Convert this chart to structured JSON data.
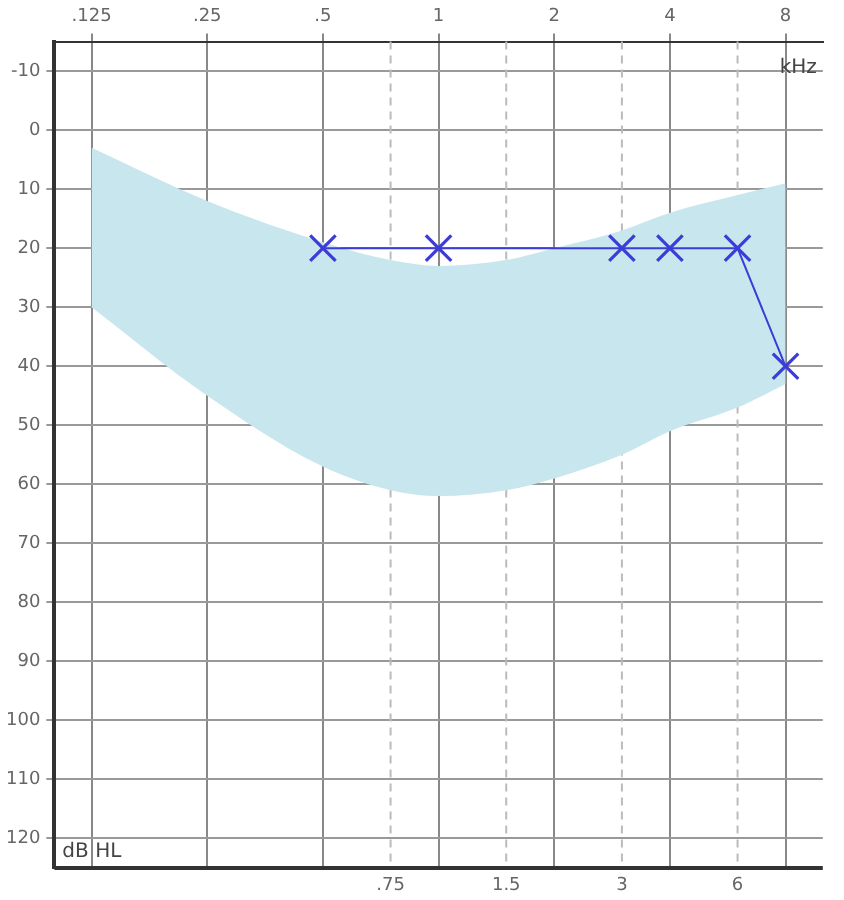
{
  "chart_data": {
    "type": "line",
    "xlabel": "kHz",
    "ylabel": "dB HL",
    "log": "x",
    "xlim": [
      0.1,
      10
    ],
    "xticks": [
      {
        "value": 0.125,
        "label": ".125"
      },
      {
        "value": 0.25,
        "label": ".25"
      },
      {
        "value": 0.5,
        "label": ".5"
      },
      1,
      2,
      4,
      8
    ],
    "ylim": [
      125,
      -15
    ],
    "yticks": [
      -10,
      0,
      10,
      20,
      30,
      40,
      50,
      60,
      70,
      80,
      90,
      100,
      110,
      120
    ],
    "grid": true,
    "legend": false,
    "ref_lines": [
      {
        "axis": "x",
        "value": 0.75,
        "label": ".75",
        "line_style": "dashed",
        "color": "#bbbbbb"
      },
      {
        "axis": "x",
        "value": 1.5,
        "label": "1.5",
        "line_style": "dashed",
        "color": "#bbbbbb"
      },
      {
        "axis": "x",
        "value": 3,
        "label": "3",
        "line_style": "dashed",
        "color": "#bbbbbb"
      },
      {
        "axis": "x",
        "value": 6,
        "label": "6",
        "line_style": "dashed",
        "color": "#bbbbbb"
      }
    ],
    "series": [
      {
        "type": "area",
        "color": "#c8e6ed",
        "x": [
          0.125,
          0.25,
          0.5,
          0.75,
          1,
          1.5,
          2,
          3,
          4,
          6,
          8
        ],
        "values": [
          null,
          null,
          null,
          null,
          null,
          null,
          null,
          null,
          null,
          null,
          null
        ],
        "lower": [
          3,
          12,
          19,
          22,
          23,
          22,
          20,
          17,
          14,
          11,
          9
        ],
        "upper": [
          30,
          45,
          57,
          61,
          62,
          61,
          59,
          55,
          51,
          47,
          43
        ]
      },
      {
        "color": "#3c3cd8",
        "marker": "cross",
        "x": [
          0.5,
          1,
          3,
          4,
          6,
          8
        ],
        "values": [
          20,
          20,
          20,
          20,
          20,
          40
        ]
      }
    ]
  }
}
